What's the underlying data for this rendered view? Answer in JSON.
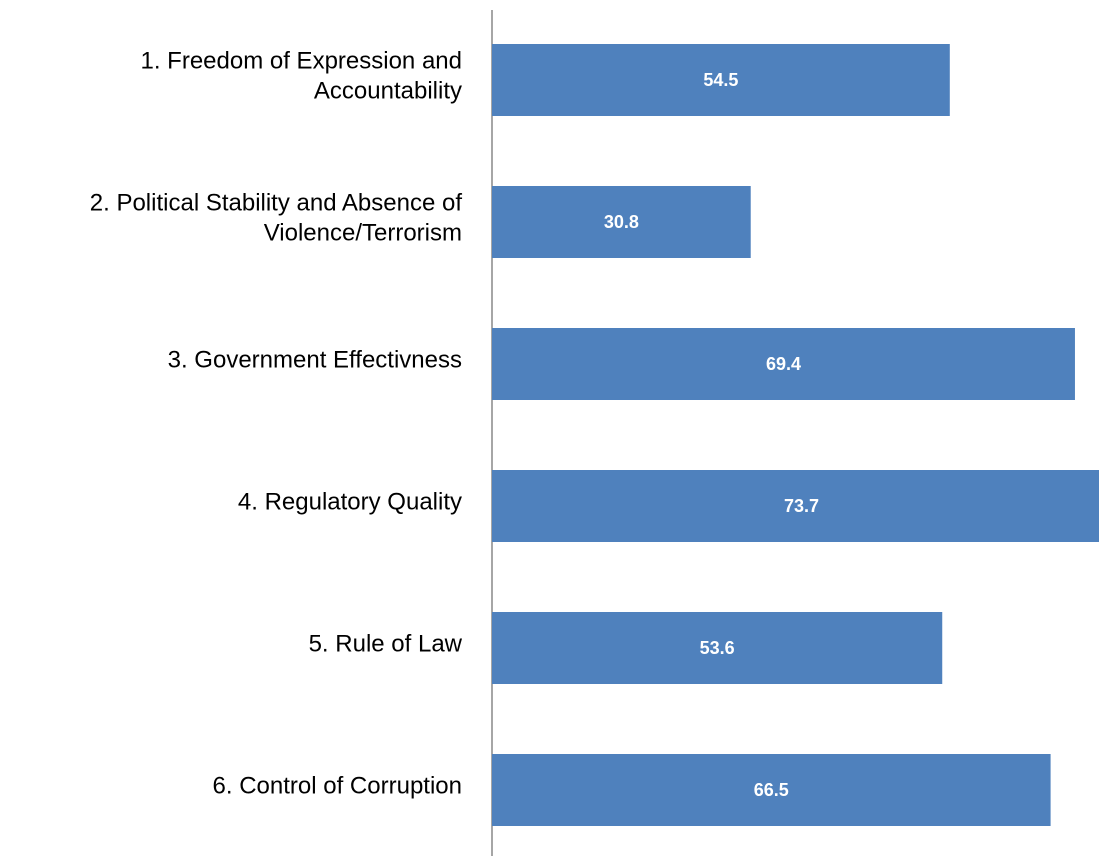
{
  "chart_data": {
    "type": "barh",
    "categories": [
      [
        "1. Freedom of Expression and",
        "Accountability"
      ],
      [
        "2. Political Stability and Absence of",
        "Violence/Terrorism"
      ],
      [
        "3. Government Effectivness"
      ],
      [
        "4. Regulatory Quality"
      ],
      [
        "5. Rule of Law"
      ],
      [
        "6. Control of Corruption"
      ]
    ],
    "values": [
      54.5,
      30.8,
      69.4,
      73.7,
      53.6,
      66.5
    ],
    "color": "#4f81bd"
  }
}
